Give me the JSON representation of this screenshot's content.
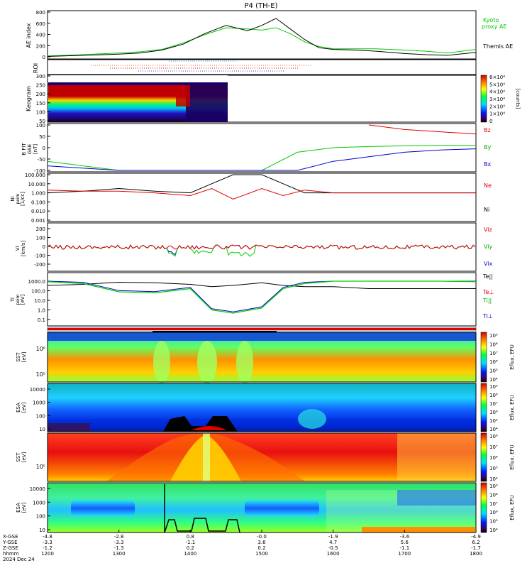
{
  "title": "P4 (TH-E)",
  "x_axis": {
    "ticks": [
      "1200",
      "1300",
      "1400",
      "1500",
      "1600",
      "1700",
      "1800"
    ],
    "row_labels": [
      "X-GSE",
      "Y-GSE",
      "Z-GSE",
      "hhmm",
      "2024 Dec 24"
    ],
    "xgse": [
      "-4.8",
      "-2.8",
      "0.8",
      "-0.0",
      "-1.9",
      "-3.6",
      "-4.9"
    ],
    "ygse": [
      "-3.3",
      "-3.3",
      "-1.1",
      "3.6",
      "4.7",
      "5.6",
      "6.2"
    ],
    "zgse": [
      "-1.2",
      "-1.3",
      "0.2",
      "0.2",
      "-0.5",
      "-1.1",
      "-1.7"
    ]
  },
  "panels": {
    "ae": {
      "ylabel": "AE index",
      "ticks": [
        "800",
        "600",
        "400",
        "200",
        "0"
      ],
      "legend": [
        "Kyoto",
        "proxy AE",
        "Themis AE"
      ],
      "colors": {
        "kyoto": "#00cc00",
        "themis": "#000000"
      }
    },
    "roi": {
      "ylabel": "ROI"
    },
    "keogram": {
      "ylabel": "Keogram",
      "ticks": [
        "300",
        "250",
        "200",
        "150",
        "100",
        "50"
      ],
      "cbar_ticks": [
        "6×10⁴",
        "5×10⁴",
        "4×10⁴",
        "3×10⁴",
        "2×10⁴",
        "1×10⁴",
        "0"
      ],
      "cbar_label": "[counts]"
    },
    "bfield": {
      "ylabel": [
        "B FIT",
        "GSE",
        "[nT]"
      ],
      "ticks": [
        "100",
        "50",
        "0",
        "-50",
        "-100"
      ],
      "legend": [
        "Bz",
        "By",
        "Bx"
      ]
    },
    "density": {
      "ylabel": [
        "Ni",
        "peim",
        "[1/cc]"
      ],
      "ticks": [
        "100.000",
        "10.000",
        "1.000",
        "0.100",
        "0.010",
        "0.001"
      ],
      "legend": [
        "Ne",
        "Ni"
      ]
    },
    "velocity": {
      "ylabel": [
        "Vi",
        "[km/s]"
      ],
      "ticks": [
        "200",
        "100",
        "0",
        "-100",
        "-200"
      ],
      "legend": [
        "Viz",
        "Viy",
        "Vix"
      ]
    },
    "temperature": {
      "ylabel": [
        "Ti",
        "peim",
        "[eV]"
      ],
      "ticks": [
        "1000.0",
        "100.0",
        "10.0",
        "1.0",
        "0.1"
      ],
      "legend": [
        "Te||",
        "Te⊥",
        "Ti||",
        "Ti⊥"
      ]
    },
    "sst_e": {
      "ylabel": [
        "SST",
        "[eV]"
      ],
      "ticks": [
        "10⁶",
        "10⁵"
      ],
      "cbar_ticks": [
        "10⁹",
        "10⁸",
        "10⁷",
        "10⁶",
        "10⁵",
        "10⁴"
      ],
      "cbar_label": "Eflux, EFU"
    },
    "esa_e": {
      "ylabel": [
        "ESA",
        "[eV]"
      ],
      "ticks": [
        "10000",
        "1000",
        "100",
        "10"
      ],
      "cbar_ticks": [
        "10⁹",
        "10⁸",
        "10⁷",
        "10⁶",
        "10⁵",
        "10⁴"
      ],
      "cbar_label": "Eflux, EFU"
    },
    "sst_i": {
      "ylabel": [
        "SST",
        "[eV]"
      ],
      "ticks": [
        "10⁵"
      ],
      "cbar_ticks": [
        "10⁸",
        "10⁷",
        "10⁶",
        "10⁵",
        "10⁴"
      ],
      "cbar_label": "Eflux, EFU"
    },
    "esa_i": {
      "ylabel": [
        "ESA",
        "[eV]"
      ],
      "ticks": [
        "10000",
        "1000",
        "100",
        "10"
      ],
      "cbar_ticks": [
        "10⁹",
        "10⁸",
        "10⁷",
        "10⁶",
        "10⁵",
        "10⁴"
      ],
      "cbar_label": "Eflux, EFU"
    }
  },
  "chart_data": [
    {
      "type": "line",
      "title": "P4 (TH-E)",
      "ylabel": "AE index",
      "ylim": [
        0,
        800
      ],
      "x": [
        12.0,
        12.5,
        13.0,
        13.3,
        13.6,
        13.9,
        14.2,
        14.5,
        14.8,
        15.0,
        15.2,
        15.4,
        15.6,
        15.8,
        16.0,
        16.3,
        16.6,
        17.0,
        17.3,
        17.6,
        18.0
      ],
      "series": [
        {
          "name": "Themis AE",
          "values": [
            30,
            50,
            70,
            90,
            140,
            240,
            420,
            560,
            470,
            560,
            680,
            500,
            320,
            180,
            150,
            140,
            120,
            80,
            60,
            50,
            100
          ]
        },
        {
          "name": "Kyoto proxy AE",
          "values": [
            40,
            60,
            90,
            110,
            150,
            260,
            400,
            520,
            500,
            480,
            520,
            420,
            280,
            200,
            160,
            160,
            160,
            140,
            120,
            90,
            150
          ]
        }
      ]
    },
    {
      "type": "line",
      "ylabel": "B FIT GSE [nT]",
      "ylim": [
        -100,
        100
      ],
      "x": [
        12.0,
        13.0,
        13.5,
        14.0,
        14.5,
        15.0,
        15.5,
        16.0,
        16.5,
        17.0,
        17.5,
        18.0
      ],
      "series": [
        {
          "name": "Bz",
          "values": [
            null,
            null,
            null,
            null,
            null,
            null,
            null,
            null,
            100,
            80,
            70,
            60
          ]
        },
        {
          "name": "By",
          "values": [
            -60,
            -100,
            null,
            null,
            null,
            -100,
            -20,
            0,
            5,
            8,
            10,
            10
          ]
        },
        {
          "name": "Bx",
          "values": [
            -80,
            -100,
            null,
            null,
            null,
            null,
            -100,
            -60,
            -40,
            -20,
            -10,
            -5
          ]
        }
      ]
    },
    {
      "type": "line",
      "ylabel": "Ni peim [1/cc]",
      "ylim": [
        0.001,
        100
      ],
      "x": [
        12.0,
        12.5,
        13.0,
        13.5,
        14.0,
        14.3,
        14.6,
        15.0,
        15.3,
        15.6,
        16.0,
        16.5,
        17.0,
        17.5,
        18.0
      ],
      "series": [
        {
          "name": "Ne",
          "values": [
            2,
            1.5,
            1.5,
            1,
            0.5,
            3,
            0.2,
            3,
            0.5,
            2,
            1,
            1,
            1,
            1,
            1
          ]
        },
        {
          "name": "Ni",
          "values": [
            1,
            1.5,
            3,
            1.5,
            1,
            10,
            100,
            100,
            10,
            1,
            1,
            1,
            1,
            1,
            1
          ]
        }
      ]
    },
    {
      "type": "line",
      "ylabel": "Ti peim [eV]",
      "ylim": [
        0.1,
        1000
      ],
      "x": [
        12.0,
        12.5,
        13.0,
        13.5,
        14.0,
        14.3,
        14.6,
        15.0,
        15.3,
        15.6,
        16.0,
        16.5,
        17.0,
        17.5,
        18.0
      ],
      "series": [
        {
          "name": "Ti||",
          "values": [
            900,
            600,
            100,
            80,
            200,
            2,
            1,
            3,
            200,
            600,
            1000,
            1000,
            1000,
            1000,
            900
          ]
        },
        {
          "name": "Te||",
          "values": [
            400,
            500,
            800,
            700,
            500,
            300,
            400,
            700,
            400,
            300,
            300,
            200,
            200,
            200,
            200
          ]
        }
      ]
    }
  ]
}
